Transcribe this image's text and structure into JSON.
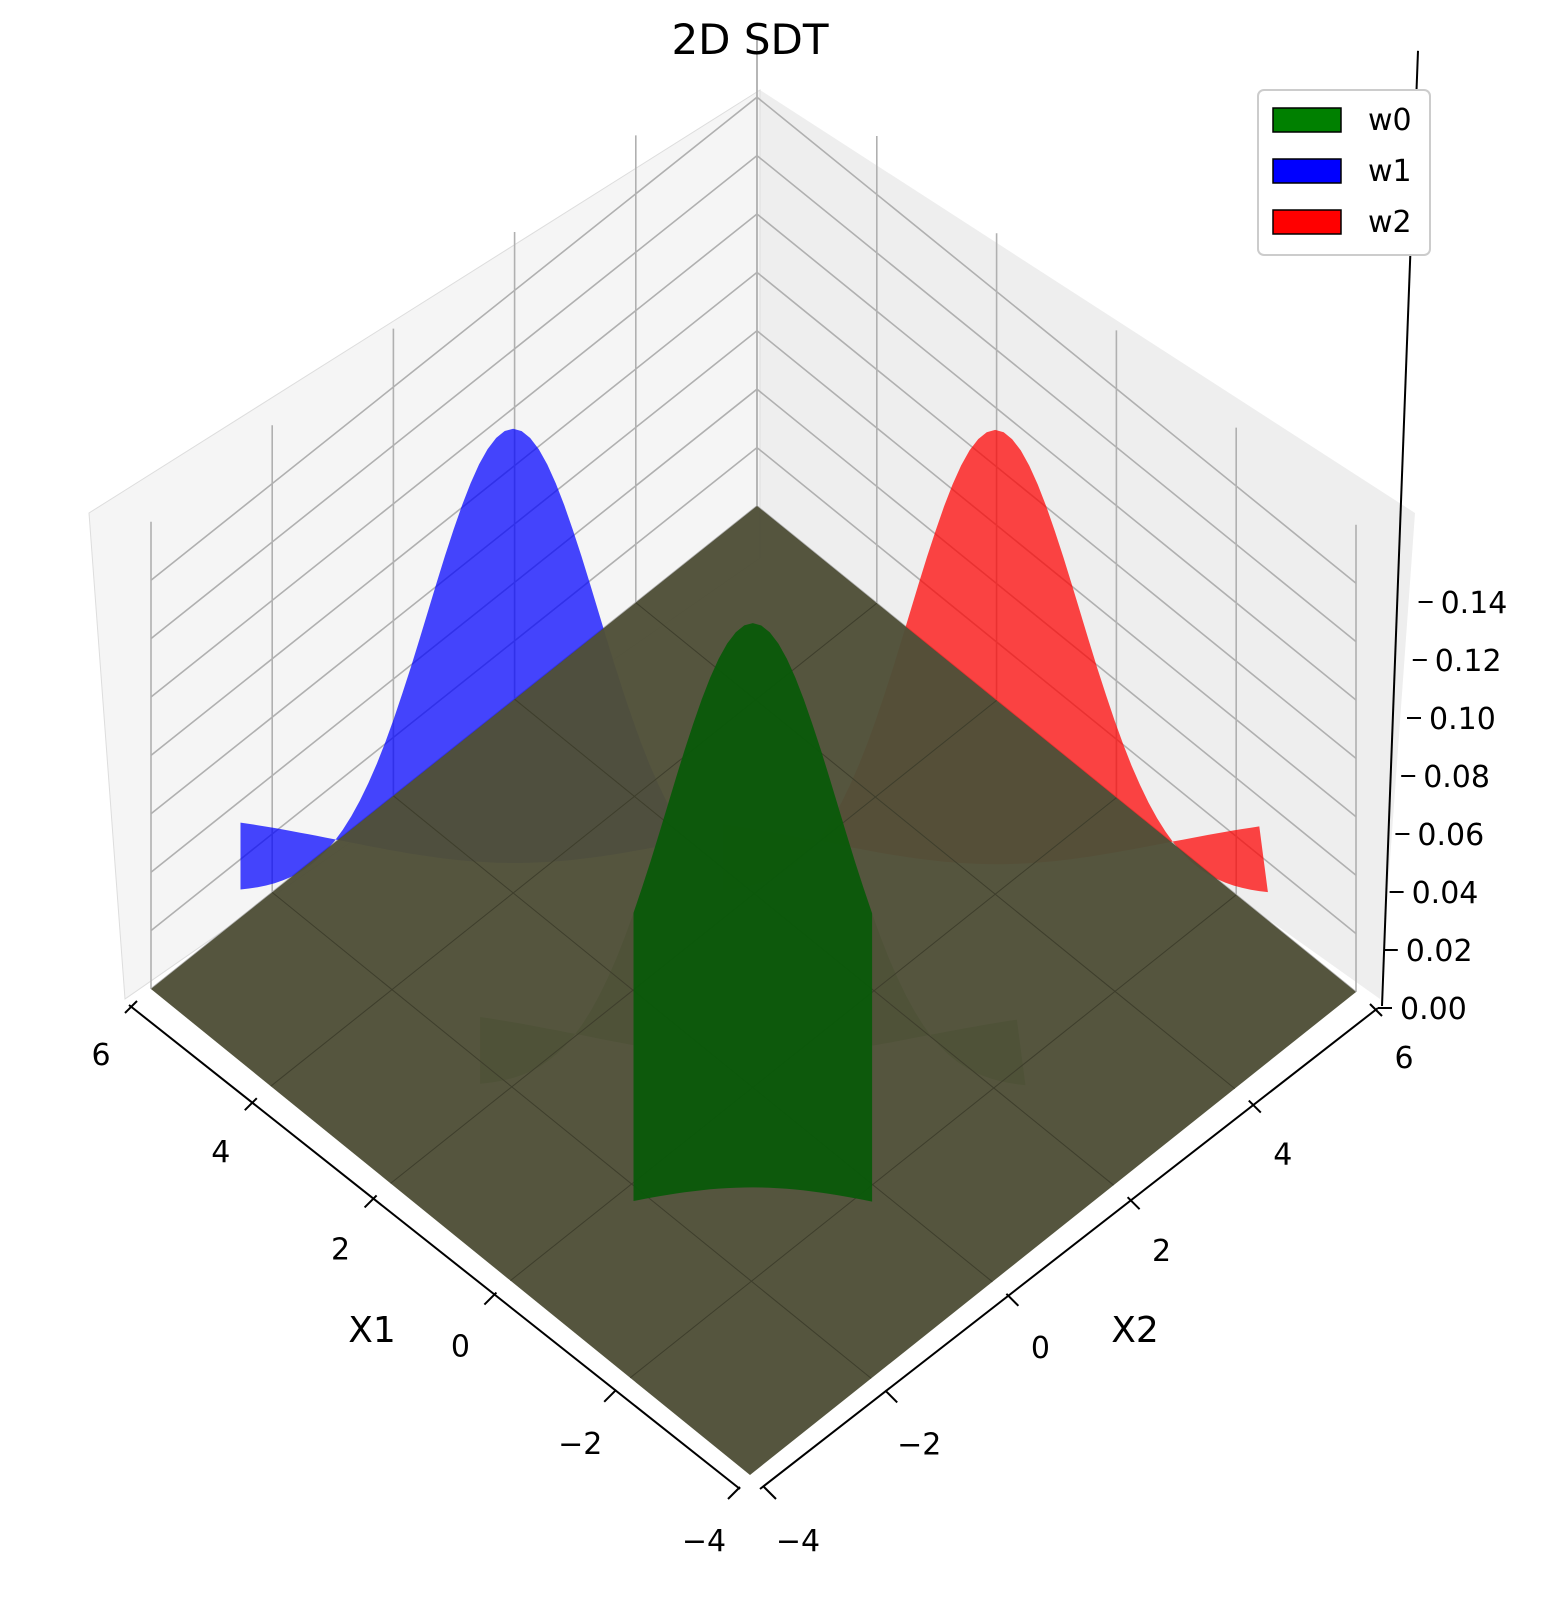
{
  "chart_data": {
    "type": "surface3d",
    "title": "2D SDT",
    "xlabel": "X1",
    "ylabel": "X2",
    "zlabel": "",
    "xlim": [
      -4,
      6
    ],
    "ylim": [
      -4,
      6
    ],
    "zlim": [
      0,
      0.16
    ],
    "x_ticks": [
      "−4",
      "−2",
      "0",
      "2",
      "4",
      "6"
    ],
    "y_ticks": [
      "−4",
      "−2",
      "0",
      "2",
      "4",
      "6"
    ],
    "z_ticks": [
      "0.00",
      "0.02",
      "0.04",
      "0.06",
      "0.08",
      "0.10",
      "0.12",
      "0.14"
    ],
    "grid": true,
    "legend_position": "top-right",
    "series": [
      {
        "name": "w0",
        "color": "#008000",
        "mean": [
          0,
          0
        ],
        "peak": 0.159
      },
      {
        "name": "w1",
        "color": "#0000ff",
        "mean": [
          4,
          0
        ],
        "peak": 0.159
      },
      {
        "name": "w2",
        "color": "#ff0000",
        "mean": [
          0,
          4
        ],
        "peak": 0.159
      }
    ],
    "floor_color": "#4f4f38"
  }
}
